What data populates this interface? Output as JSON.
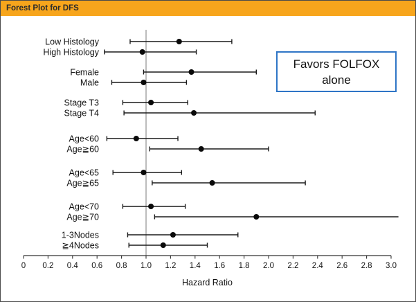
{
  "window": {
    "title": "Forest Plot for DFS"
  },
  "annotation_box": {
    "line1": "Favors FOLFOX",
    "line2": "alone"
  },
  "colors": {
    "title_bar": "#f7a51c",
    "box_border": "#2e75c6",
    "marker": "#0a0a0a",
    "ci_line": "#1a1a1a",
    "ref_line": "#787878",
    "axis": "#333333"
  },
  "chart_data": {
    "type": "forest",
    "title": "Forest Plot for DFS",
    "xlabel": "Hazard Ratio",
    "xlim": [
      0,
      3.0
    ],
    "x_tick_labels": [
      "0",
      "0.2",
      "0.4",
      "0.6",
      "0.8",
      "1.0",
      "1.2",
      "1.4",
      "1.6",
      "1.8",
      "2.0",
      "2.2",
      "2.4",
      "2.6",
      "2.8",
      "3.0"
    ],
    "reference_line": 1.0,
    "rows": [
      {
        "label": "Low Histology",
        "low": 0.87,
        "hr": 1.27,
        "high": 1.7
      },
      {
        "label": "High Histology",
        "low": 0.66,
        "hr": 0.97,
        "high": 1.41
      },
      {
        "label": "Female",
        "low": 0.98,
        "hr": 1.37,
        "high": 1.9
      },
      {
        "label": "Male",
        "low": 0.72,
        "hr": 0.98,
        "high": 1.33
      },
      {
        "label": "Stage T3",
        "low": 0.81,
        "hr": 1.04,
        "high": 1.34
      },
      {
        "label": "Stage T4",
        "low": 0.82,
        "hr": 1.39,
        "high": 2.38
      },
      {
        "label": "Age<60",
        "low": 0.68,
        "hr": 0.92,
        "high": 1.26
      },
      {
        "label": "Age≧60",
        "low": 1.03,
        "hr": 1.45,
        "high": 2.0
      },
      {
        "label": "Age<65",
        "low": 0.73,
        "hr": 0.98,
        "high": 1.29
      },
      {
        "label": "Age≧65",
        "low": 1.05,
        "hr": 1.54,
        "high": 2.3
      },
      {
        "label": "Age<70",
        "low": 0.81,
        "hr": 1.04,
        "high": 1.32
      },
      {
        "label": "Age≧70",
        "low": 1.07,
        "hr": 1.9,
        "high": 3.06,
        "high_clipped": true
      },
      {
        "label": "1-3Nodes",
        "low": 0.85,
        "hr": 1.22,
        "high": 1.75
      },
      {
        "label": "≧4Nodes",
        "low": 0.86,
        "hr": 1.14,
        "high": 1.5
      }
    ]
  }
}
